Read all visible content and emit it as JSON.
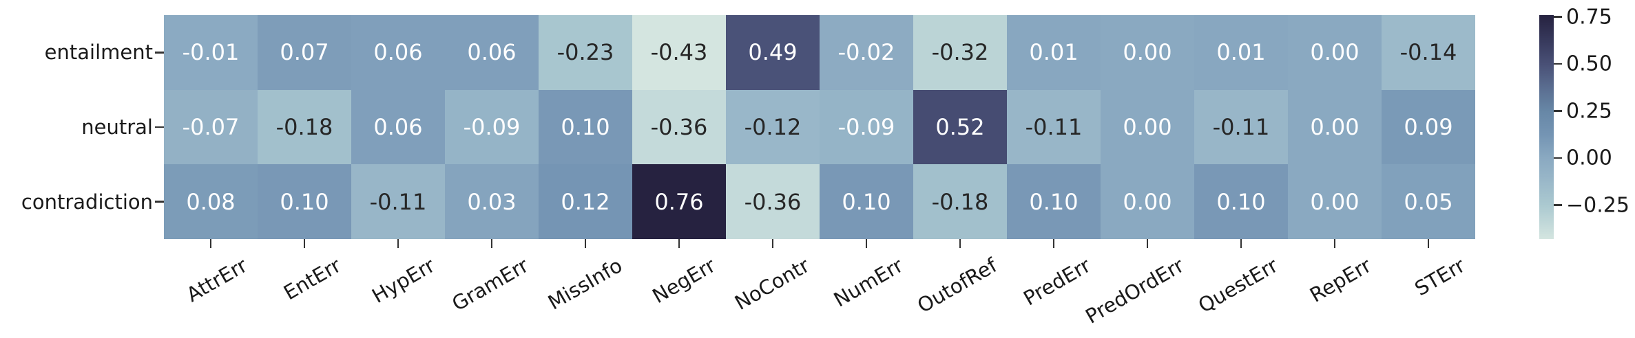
{
  "figure": {
    "background": "#ffffff",
    "axis_tick_color": "#333333",
    "label_text_color": "#1a1a1a"
  },
  "chart_data": {
    "type": "heatmap",
    "title": "",
    "rows": [
      "entailment",
      "neutral",
      "contradiction"
    ],
    "columns": [
      "AttrErr",
      "EntErr",
      "HypErr",
      "GramErr",
      "MissInfo",
      "NegErr",
      "NoContr",
      "NumErr",
      "OutofRef",
      "PredErr",
      "PredOrdErr",
      "QuestErr",
      "RepErr",
      "STErr"
    ],
    "values": [
      [
        -0.01,
        0.07,
        0.06,
        0.06,
        -0.23,
        -0.43,
        0.49,
        -0.02,
        -0.32,
        0.01,
        0.0,
        0.01,
        0.0,
        -0.14
      ],
      [
        -0.07,
        -0.18,
        0.06,
        -0.09,
        0.1,
        -0.36,
        -0.12,
        -0.09,
        0.52,
        -0.11,
        0.0,
        -0.11,
        0.0,
        0.09
      ],
      [
        0.08,
        0.1,
        -0.11,
        0.03,
        0.12,
        0.76,
        -0.36,
        0.1,
        -0.18,
        0.1,
        0.0,
        0.1,
        0.0,
        0.05
      ]
    ],
    "vmin": -0.43,
    "vmax": 0.76,
    "annotation_decimals": 2,
    "annotation_text_light": "#ffffff",
    "annotation_text_dark": "#262626",
    "dark_text_value_threshold": -0.105,
    "grid": false,
    "x_tick_rotation_deg": 30,
    "colormap_stops": [
      {
        "v": -0.43,
        "color": [
          212,
          229,
          224
        ]
      },
      {
        "v": -0.25,
        "color": [
          171,
          201,
          208
        ]
      },
      {
        "v": -0.11,
        "color": [
          152,
          182,
          200
        ]
      },
      {
        "v": 0.0,
        "color": [
          138,
          169,
          193
        ]
      },
      {
        "v": 0.12,
        "color": [
          117,
          149,
          180
        ]
      },
      {
        "v": 0.25,
        "color": [
          103,
          135,
          166
        ]
      },
      {
        "v": 0.375,
        "color": [
          90,
          109,
          144
        ]
      },
      {
        "v": 0.5,
        "color": [
          73,
          80,
          118
        ]
      },
      {
        "v": 0.625,
        "color": [
          55,
          57,
          92
        ]
      },
      {
        "v": 0.76,
        "color": [
          38,
          34,
          64
        ]
      }
    ],
    "colorbar": {
      "position": "right",
      "tick_labels": [
        "0.75",
        "0.50",
        "0.25",
        "0.00",
        "−0.25"
      ],
      "tick_values": [
        0.75,
        0.5,
        0.25,
        0.0,
        -0.25
      ]
    }
  }
}
